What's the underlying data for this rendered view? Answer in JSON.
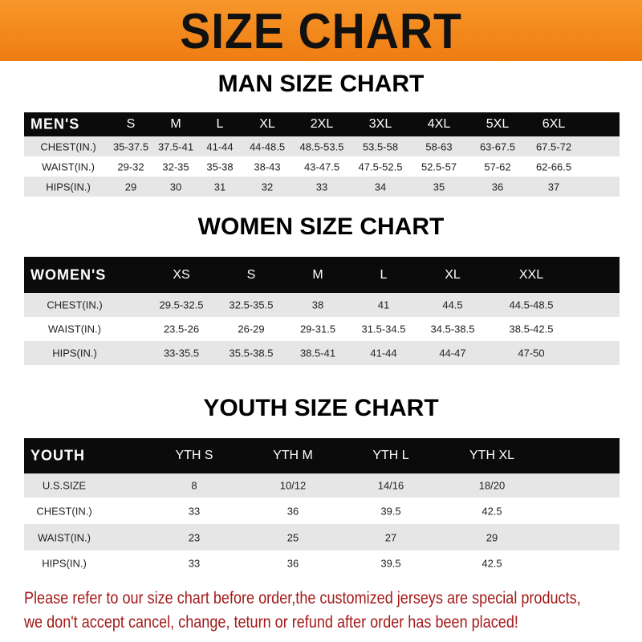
{
  "title": "SIZE CHART",
  "colors": {
    "banner": "#f28a1e",
    "header_row": "#0b0b0b",
    "stripe": "#e6e6e6",
    "note": "#a31a1a"
  },
  "men": {
    "title": "MAN SIZE CHART",
    "header": [
      "MEN'S",
      "S",
      "M",
      "L",
      "XL",
      "2XL",
      "3XL",
      "4XL",
      "5XL",
      "6XL"
    ],
    "rows": [
      [
        "CHEST(IN.)",
        "35-37.5",
        "37.5-41",
        "41-44",
        "44-48.5",
        "48.5-53.5",
        "53.5-58",
        "58-63",
        "63-67.5",
        "67.5-72"
      ],
      [
        "WAIST(IN.)",
        "29-32",
        "32-35",
        "35-38",
        "38-43",
        "43-47.5",
        "47.5-52.5",
        "52.5-57",
        "57-62",
        "62-66.5"
      ],
      [
        "HIPS(IN.)",
        "29",
        "30",
        "31",
        "32",
        "33",
        "34",
        "35",
        "36",
        "37"
      ]
    ]
  },
  "women": {
    "title": "WOMEN SIZE CHART",
    "header": [
      "WOMEN'S",
      "XS",
      "S",
      "M",
      "L",
      "XL",
      "XXL"
    ],
    "rows": [
      [
        "CHEST(IN.)",
        "29.5-32.5",
        "32.5-35.5",
        "38",
        "41",
        "44.5",
        "44.5-48.5"
      ],
      [
        "WAIST(IN.)",
        "23.5-26",
        "26-29",
        "29-31.5",
        "31.5-34.5",
        "34.5-38.5",
        "38.5-42.5"
      ],
      [
        "HIPS(IN.)",
        "33-35.5",
        "35.5-38.5",
        "38.5-41",
        "41-44",
        "44-47",
        "47-50"
      ]
    ]
  },
  "youth": {
    "title": "YOUTH SIZE CHART",
    "header": [
      "YOUTH",
      "YTH S",
      "YTH M",
      "YTH L",
      "YTH XL"
    ],
    "rows": [
      [
        "U.S.SIZE",
        "8",
        "10/12",
        "14/16",
        "18/20"
      ],
      [
        "CHEST(IN.)",
        "33",
        "36",
        "39.5",
        "42.5"
      ],
      [
        "WAIST(IN.)",
        "23",
        "25",
        "27",
        "29"
      ],
      [
        "HIPS(IN.)",
        "33",
        "36",
        "39.5",
        "42.5"
      ]
    ]
  },
  "note": {
    "line1": "Please refer to our size chart before order,the customized jerseys are special products,",
    "line2": "we don't accept cancel, change, teturn or refund after order has been placed!"
  }
}
